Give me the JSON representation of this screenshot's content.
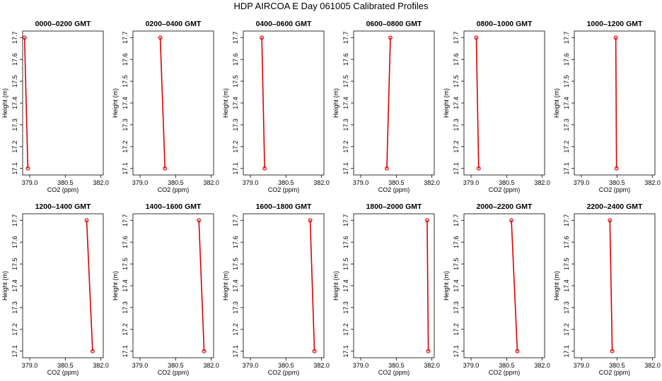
{
  "title": "HDP AIRCOA E  Day 061005  Calibrated Profiles",
  "chart_data": [
    {
      "type": "line",
      "title": "0000–0200 GMT",
      "xlabel": "CO2 (ppm)",
      "ylabel": "Height (m)",
      "xlim": [
        378.7,
        382.1
      ],
      "ylim": [
        17.07,
        17.73
      ],
      "xticks": [
        "379.0",
        "380.5",
        "382.0"
      ],
      "yticks": [
        "17.1",
        "17.2",
        "17.3",
        "17.4",
        "17.5",
        "17.6",
        "17.7"
      ],
      "grid": false,
      "series": [
        {
          "x": [
            378.92,
            378.78
          ],
          "y": [
            17.1,
            17.7
          ]
        }
      ]
    },
    {
      "type": "line",
      "title": "0200–0400 GMT",
      "xlabel": "CO2 (ppm)",
      "ylabel": "Height (m)",
      "xlim": [
        378.7,
        382.1
      ],
      "ylim": [
        17.07,
        17.73
      ],
      "xticks": [
        "379.0",
        "380.5",
        "382.0"
      ],
      "yticks": [
        "17.1",
        "17.2",
        "17.3",
        "17.4",
        "17.5",
        "17.6",
        "17.7"
      ],
      "grid": false,
      "series": [
        {
          "x": [
            380.05,
            379.85
          ],
          "y": [
            17.1,
            17.7
          ]
        }
      ]
    },
    {
      "type": "line",
      "title": "0400–0600 GMT",
      "xlabel": "CO2 (ppm)",
      "ylabel": "Height (m)",
      "xlim": [
        378.7,
        382.1
      ],
      "ylim": [
        17.07,
        17.73
      ],
      "xticks": [
        "379.0",
        "380.5",
        "382.0"
      ],
      "yticks": [
        "17.1",
        "17.2",
        "17.3",
        "17.4",
        "17.5",
        "17.6",
        "17.7"
      ],
      "grid": false,
      "series": [
        {
          "x": [
            379.6,
            379.48
          ],
          "y": [
            17.1,
            17.7
          ]
        }
      ]
    },
    {
      "type": "line",
      "title": "0600–0800 GMT",
      "xlabel": "CO2 (ppm)",
      "ylabel": "Height (m)",
      "xlim": [
        378.7,
        382.1
      ],
      "ylim": [
        17.07,
        17.73
      ],
      "xticks": [
        "379.0",
        "380.5",
        "382.0"
      ],
      "yticks": [
        "17.1",
        "17.2",
        "17.3",
        "17.4",
        "17.5",
        "17.6",
        "17.7"
      ],
      "grid": false,
      "series": [
        {
          "x": [
            380.1,
            380.25
          ],
          "y": [
            17.1,
            17.7
          ]
        }
      ]
    },
    {
      "type": "line",
      "title": "0800–1000 GMT",
      "xlabel": "CO2 (ppm)",
      "ylabel": "Height (m)",
      "xlim": [
        378.7,
        382.1
      ],
      "ylim": [
        17.07,
        17.73
      ],
      "xticks": [
        "379.0",
        "380.5",
        "382.0"
      ],
      "yticks": [
        "17.1",
        "17.2",
        "17.3",
        "17.4",
        "17.5",
        "17.6",
        "17.7"
      ],
      "grid": false,
      "series": [
        {
          "x": [
            379.32,
            379.22
          ],
          "y": [
            17.1,
            17.7
          ]
        }
      ]
    },
    {
      "type": "line",
      "title": "1000–1200 GMT",
      "xlabel": "CO2 (ppm)",
      "ylabel": "Height (m)",
      "xlim": [
        378.7,
        382.1
      ],
      "ylim": [
        17.07,
        17.73
      ],
      "xticks": [
        "379.0",
        "380.5",
        "382.0"
      ],
      "yticks": [
        "17.1",
        "17.2",
        "17.3",
        "17.4",
        "17.5",
        "17.6",
        "17.7"
      ],
      "grid": false,
      "series": [
        {
          "x": [
            380.48,
            380.45
          ],
          "y": [
            17.1,
            17.7
          ]
        }
      ]
    },
    {
      "type": "line",
      "title": "1200–1400 GMT",
      "xlabel": "CO2 (ppm)",
      "ylabel": "Height (m)",
      "xlim": [
        378.7,
        382.1
      ],
      "ylim": [
        17.07,
        17.73
      ],
      "xticks": [
        "379.0",
        "380.5",
        "382.0"
      ],
      "yticks": [
        "17.1",
        "17.2",
        "17.3",
        "17.4",
        "17.5",
        "17.6",
        "17.7"
      ],
      "grid": false,
      "series": [
        {
          "x": [
            381.65,
            381.4
          ],
          "y": [
            17.1,
            17.7
          ]
        }
      ]
    },
    {
      "type": "line",
      "title": "1400–1600 GMT",
      "xlabel": "CO2 (ppm)",
      "ylabel": "Height (m)",
      "xlim": [
        378.7,
        382.1
      ],
      "ylim": [
        17.07,
        17.73
      ],
      "xticks": [
        "379.0",
        "380.5",
        "382.0"
      ],
      "yticks": [
        "17.1",
        "17.2",
        "17.3",
        "17.4",
        "17.5",
        "17.6",
        "17.7"
      ],
      "grid": false,
      "series": [
        {
          "x": [
            381.7,
            381.48
          ],
          "y": [
            17.1,
            17.7
          ]
        }
      ]
    },
    {
      "type": "line",
      "title": "1600–1800 GMT",
      "xlabel": "CO2 (ppm)",
      "ylabel": "Height (m)",
      "xlim": [
        378.7,
        382.1
      ],
      "ylim": [
        17.07,
        17.73
      ],
      "xticks": [
        "379.0",
        "380.5",
        "382.0"
      ],
      "yticks": [
        "17.1",
        "17.2",
        "17.3",
        "17.4",
        "17.5",
        "17.6",
        "17.7"
      ],
      "grid": false,
      "series": [
        {
          "x": [
            381.7,
            381.52
          ],
          "y": [
            17.1,
            17.7
          ]
        }
      ]
    },
    {
      "type": "line",
      "title": "1800–2000 GMT",
      "xlabel": "CO2 (ppm)",
      "ylabel": "Height (m)",
      "xlim": [
        378.7,
        382.1
      ],
      "ylim": [
        17.07,
        17.73
      ],
      "xticks": [
        "379.0",
        "380.5",
        "382.0"
      ],
      "yticks": [
        "17.1",
        "17.2",
        "17.3",
        "17.4",
        "17.5",
        "17.6",
        "17.7"
      ],
      "grid": false,
      "series": [
        {
          "x": [
            381.85,
            381.8
          ],
          "y": [
            17.1,
            17.7
          ]
        }
      ]
    },
    {
      "type": "line",
      "title": "2000–2200 GMT",
      "xlabel": "CO2 (ppm)",
      "ylabel": "Height (m)",
      "xlim": [
        378.7,
        382.1
      ],
      "ylim": [
        17.07,
        17.73
      ],
      "xticks": [
        "379.0",
        "380.5",
        "382.0"
      ],
      "yticks": [
        "17.1",
        "17.2",
        "17.3",
        "17.4",
        "17.5",
        "17.6",
        "17.7"
      ],
      "grid": false,
      "series": [
        {
          "x": [
            380.95,
            380.7
          ],
          "y": [
            17.1,
            17.7
          ]
        }
      ]
    },
    {
      "type": "line",
      "title": "2200–2400 GMT",
      "xlabel": "CO2 (ppm)",
      "ylabel": "Height (m)",
      "xlim": [
        378.7,
        382.1
      ],
      "ylim": [
        17.07,
        17.73
      ],
      "xticks": [
        "379.0",
        "380.5",
        "382.0"
      ],
      "yticks": [
        "17.1",
        "17.2",
        "17.3",
        "17.4",
        "17.5",
        "17.6",
        "17.7"
      ],
      "grid": false,
      "series": [
        {
          "x": [
            380.3,
            380.2
          ],
          "y": [
            17.1,
            17.7
          ]
        }
      ]
    }
  ],
  "colors": {
    "line": "#dd0000",
    "marker": "#dd0000",
    "axis": "#000000",
    "text": "#000000"
  }
}
